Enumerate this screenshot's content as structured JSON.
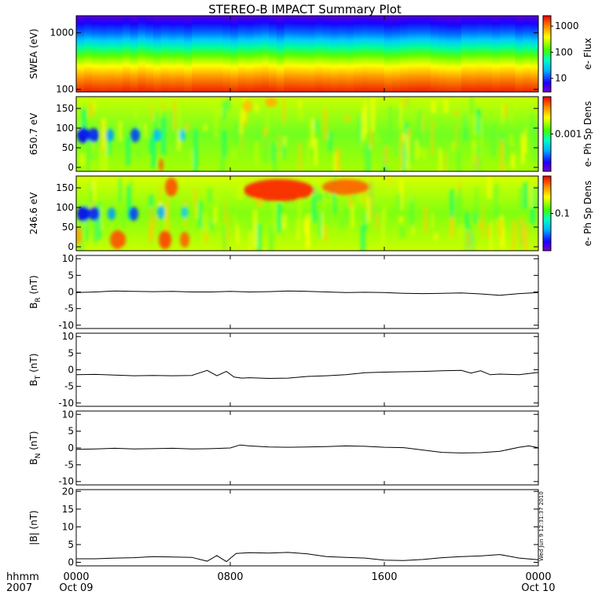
{
  "title": "STEREO-B IMPACT Summary Plot",
  "time_axis": {
    "label_top": "hhmm",
    "label_bottom": "2007",
    "ticks": [
      {
        "hour": 0,
        "label": "0000",
        "sub": "Oct 09"
      },
      {
        "hour": 8,
        "label": "0800",
        "sub": ""
      },
      {
        "hour": 16,
        "label": "1600",
        "sub": ""
      },
      {
        "hour": 24,
        "label": "0000",
        "sub": "Oct 10"
      }
    ],
    "range_hours": [
      0,
      24
    ]
  },
  "timestamp": "Wed Jun  9 12:31:37 2010",
  "colors": {
    "frame": "#000000",
    "background": "#ffffff"
  },
  "chart_data": [
    {
      "type": "heatmap",
      "ylabel": "SWEA (eV)",
      "yscale": "log",
      "ylim": [
        90,
        2000
      ],
      "yticks": [
        {
          "v": 100,
          "label": "100"
        },
        {
          "v": 1000,
          "label": "1000"
        }
      ],
      "colorbar": {
        "label": "e- Flux",
        "scale": "log",
        "range": [
          3,
          2500
        ],
        "ticks": [
          {
            "v": 10,
            "label": "10"
          },
          {
            "v": 100,
            "label": "100"
          },
          {
            "v": 1000,
            "label": "1000"
          }
        ]
      },
      "description_values": "flux high (~1000) at low energy, falling to ~5 at 2000 eV"
    },
    {
      "type": "heatmap",
      "ylabel": "650.7 eV",
      "ylim": [
        -10,
        180
      ],
      "yticks": [
        {
          "v": 0,
          "label": "0"
        },
        {
          "v": 50,
          "label": "50"
        },
        {
          "v": 100,
          "label": "100"
        },
        {
          "v": 150,
          "label": "150"
        }
      ],
      "colorbar": {
        "label": "e- Ph Sp Dens",
        "scale": "log",
        "range": [
          0.0002,
          0.005
        ],
        "ticks": [
          {
            "v": 0.001,
            "label": "0.001"
          }
        ]
      }
    },
    {
      "type": "heatmap",
      "ylabel": "246.6 eV",
      "ylim": [
        -10,
        180
      ],
      "yticks": [
        {
          "v": 0,
          "label": "0"
        },
        {
          "v": 50,
          "label": "50"
        },
        {
          "v": 100,
          "label": "100"
        },
        {
          "v": 150,
          "label": "150"
        }
      ],
      "colorbar": {
        "label": "e- Ph Sp Dens",
        "scale": "log",
        "range": [
          0.02,
          0.5
        ],
        "ticks": [
          {
            "v": 0.1,
            "label": "0.1"
          }
        ]
      }
    },
    {
      "type": "line",
      "ylabel_main": "B",
      "ylabel_sub": "R",
      "ylabel_unit": " (nT)",
      "ylim": [
        -11,
        11
      ],
      "yticks": [
        {
          "v": -10,
          "label": "-10"
        },
        {
          "v": -5,
          "label": "-5"
        },
        {
          "v": 0,
          "label": "0"
        },
        {
          "v": 5,
          "label": "5"
        },
        {
          "v": 10,
          "label": "10"
        }
      ],
      "x": [
        0,
        1,
        2,
        3,
        4,
        5,
        6,
        7,
        8,
        9,
        10,
        11,
        12,
        13,
        14,
        15,
        16,
        17,
        18,
        19,
        20,
        21,
        22,
        23,
        24
      ],
      "y": [
        -0.2,
        0.0,
        0.3,
        0.2,
        0.1,
        0.2,
        0.0,
        0.0,
        0.2,
        0.0,
        0.1,
        0.3,
        0.2,
        0.0,
        -0.2,
        -0.1,
        -0.2,
        -0.4,
        -0.5,
        -0.4,
        -0.3,
        -0.6,
        -1.0,
        -0.5,
        -0.2
      ]
    },
    {
      "type": "line",
      "ylabel_main": "B",
      "ylabel_sub": "T",
      "ylabel_unit": " (nT)",
      "ylim": [
        -11,
        11
      ],
      "yticks": [
        {
          "v": -10,
          "label": "-10"
        },
        {
          "v": -5,
          "label": "-5"
        },
        {
          "v": 0,
          "label": "0"
        },
        {
          "v": 5,
          "label": "5"
        },
        {
          "v": 10,
          "label": "10"
        }
      ],
      "x": [
        0,
        1,
        2,
        3,
        4,
        5,
        6,
        6.8,
        7.3,
        7.8,
        8.2,
        8.6,
        9,
        10,
        11,
        12,
        13,
        14,
        15,
        16,
        17,
        18,
        19,
        20,
        20.5,
        21,
        21.5,
        22,
        23,
        24
      ],
      "y": [
        -1.5,
        -1.4,
        -1.6,
        -1.8,
        -1.7,
        -1.8,
        -1.7,
        -0.2,
        -1.8,
        -0.5,
        -2.2,
        -2.5,
        -2.4,
        -2.6,
        -2.5,
        -2.0,
        -1.8,
        -1.5,
        -0.9,
        -0.7,
        -0.6,
        -0.5,
        -0.3,
        -0.2,
        -1.0,
        -0.3,
        -1.5,
        -1.3,
        -1.5,
        -0.8
      ]
    },
    {
      "type": "line",
      "ylabel_main": "B",
      "ylabel_sub": "N",
      "ylabel_unit": " (nT)",
      "ylim": [
        -11,
        11
      ],
      "yticks": [
        {
          "v": -10,
          "label": "-10"
        },
        {
          "v": -5,
          "label": "-5"
        },
        {
          "v": 0,
          "label": "0"
        },
        {
          "v": 5,
          "label": "5"
        },
        {
          "v": 10,
          "label": "10"
        }
      ],
      "x": [
        0,
        1,
        2,
        3,
        4,
        5,
        6,
        7,
        8,
        8.5,
        9,
        10,
        11,
        12,
        13,
        14,
        15,
        16,
        17,
        18,
        19,
        20,
        21,
        22,
        23,
        23.5,
        24
      ],
      "y": [
        -0.4,
        -0.3,
        -0.1,
        -0.3,
        -0.2,
        -0.1,
        -0.3,
        -0.2,
        0.0,
        0.9,
        0.6,
        0.3,
        0.2,
        0.3,
        0.4,
        0.6,
        0.5,
        0.2,
        0.1,
        -0.6,
        -1.3,
        -1.5,
        -1.4,
        -1.0,
        0.2,
        0.6,
        0.1
      ]
    },
    {
      "type": "line",
      "ylabel_main": "|B|",
      "ylabel_sub": "",
      "ylabel_unit": " (nT)",
      "ylim": [
        -1,
        20.5
      ],
      "yticks": [
        {
          "v": 0,
          "label": "0"
        },
        {
          "v": 5,
          "label": "5"
        },
        {
          "v": 10,
          "label": "10"
        },
        {
          "v": 15,
          "label": "15"
        },
        {
          "v": 20,
          "label": "20"
        }
      ],
      "x": [
        0,
        1,
        2,
        3,
        4,
        5,
        6,
        6.8,
        7.3,
        7.8,
        8.3,
        9,
        10,
        11,
        12,
        13,
        14,
        15,
        16,
        17,
        18,
        19,
        20,
        21,
        22,
        23,
        24
      ],
      "y": [
        1.0,
        1.0,
        1.2,
        1.3,
        1.6,
        1.5,
        1.4,
        0.3,
        1.9,
        0.2,
        2.5,
        2.7,
        2.6,
        2.8,
        2.4,
        1.6,
        1.4,
        1.2,
        0.6,
        0.5,
        0.8,
        1.3,
        1.6,
        1.8,
        2.2,
        1.2,
        0.7
      ]
    }
  ]
}
